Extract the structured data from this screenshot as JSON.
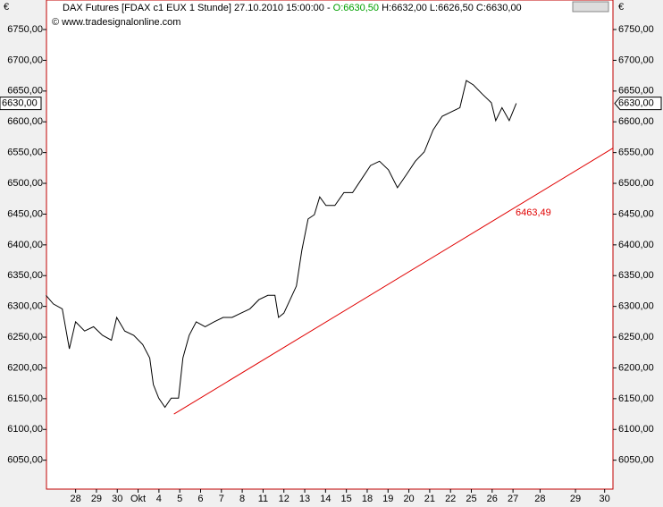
{
  "chart_data": {
    "type": "line",
    "title": "DAX Futures [FDAX c1 EUX  1 Stunde] 27.10.2010 15:00:00 - ",
    "open_label": "O:6630,50",
    "title_rest": " H:6632,00 L:6626,50 C:6630,00",
    "subtitle": "© www.tradesignalonline.com",
    "currency": "€",
    "last_price_label": "6630,00",
    "grid": false,
    "xlim": [
      -1.4,
      25.8
    ],
    "ylim": [
      6003,
      6798
    ],
    "xticks": [
      {
        "value": 0,
        "label": "28"
      },
      {
        "value": 1,
        "label": "29"
      },
      {
        "value": 2,
        "label": "30"
      },
      {
        "value": 3,
        "label": "Okt"
      },
      {
        "value": 4,
        "label": "4"
      },
      {
        "value": 5,
        "label": "5"
      },
      {
        "value": 6,
        "label": "6"
      },
      {
        "value": 7,
        "label": "7"
      },
      {
        "value": 8,
        "label": "8"
      },
      {
        "value": 9,
        "label": "11"
      },
      {
        "value": 10,
        "label": "12"
      },
      {
        "value": 11,
        "label": "13"
      },
      {
        "value": 12,
        "label": "14"
      },
      {
        "value": 13,
        "label": "15"
      },
      {
        "value": 14,
        "label": "18"
      },
      {
        "value": 15,
        "label": "19"
      },
      {
        "value": 16,
        "label": "20"
      },
      {
        "value": 17,
        "label": "21"
      },
      {
        "value": 18,
        "label": "22"
      },
      {
        "value": 19,
        "label": "25"
      },
      {
        "value": 20,
        "label": "26"
      },
      {
        "value": 21,
        "label": "27"
      },
      {
        "value": 22.3,
        "label": "28"
      },
      {
        "value": 24,
        "label": "29"
      },
      {
        "value": 25.4,
        "label": "30"
      }
    ],
    "yticks": [
      {
        "value": 6050,
        "label": "6050,00"
      },
      {
        "value": 6100,
        "label": "6100,00"
      },
      {
        "value": 6150,
        "label": "6150,00"
      },
      {
        "value": 6200,
        "label": "6200,00"
      },
      {
        "value": 6250,
        "label": "6250,00"
      },
      {
        "value": 6300,
        "label": "6300,00"
      },
      {
        "value": 6350,
        "label": "6350,00"
      },
      {
        "value": 6400,
        "label": "6400,00"
      },
      {
        "value": 6450,
        "label": "6450,00"
      },
      {
        "value": 6500,
        "label": "6500,00"
      },
      {
        "value": 6550,
        "label": "6550,00"
      },
      {
        "value": 6600,
        "label": "6600,00"
      },
      {
        "value": 6650,
        "label": "6650,00"
      },
      {
        "value": 6700,
        "label": "6700,00"
      },
      {
        "value": 6750,
        "label": "6750,00"
      }
    ],
    "series": [
      {
        "name": "FDAX",
        "color": "#000000",
        "x": [
          -1.42,
          -1.07,
          -0.64,
          -0.3,
          0,
          0.43,
          0.86,
          1.29,
          1.72,
          1.97,
          2.36,
          2.79,
          3.22,
          3.56,
          3.73,
          3.99,
          4.29,
          4.59,
          4.94,
          5.15,
          5.45,
          5.79,
          6.22,
          6.65,
          7.08,
          7.51,
          7.94,
          8.37,
          8.8,
          9.23,
          9.57,
          9.74,
          10.0,
          10.3,
          10.6,
          10.86,
          11.16,
          11.46,
          11.72,
          12.02,
          12.45,
          12.88,
          13.3,
          13.73,
          14.16,
          14.59,
          15.02,
          15.45,
          15.88,
          16.31,
          16.74,
          17.17,
          17.6,
          18.03,
          18.45,
          18.76,
          19.1,
          19.53,
          19.96,
          20.17,
          20.47,
          20.82,
          21.16
        ],
        "values": [
          6318,
          6304,
          6296,
          6231,
          6275,
          6260,
          6267,
          6253,
          6245,
          6282,
          6260,
          6253,
          6238,
          6216,
          6173,
          6151,
          6136,
          6151,
          6151,
          6216,
          6253,
          6275,
          6267,
          6275,
          6282,
          6282,
          6289,
          6296,
          6311,
          6318,
          6318,
          6282,
          6289,
          6311,
          6333,
          6391,
          6442,
          6449,
          6478,
          6464,
          6464,
          6485,
          6485,
          6507,
          6529,
          6536,
          6522,
          6493,
          6514,
          6536,
          6551,
          6587,
          6609,
          6616,
          6623,
          6667,
          6660,
          6645,
          6631,
          6602,
          6623,
          6602,
          6630
        ]
      }
    ],
    "trendline": {
      "color": "#e00000",
      "x": [
        4.72,
        25.79
      ],
      "values": [
        6125,
        6557
      ],
      "label": "6463,49"
    }
  }
}
